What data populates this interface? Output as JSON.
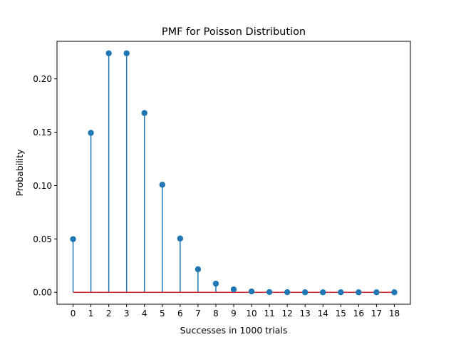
{
  "chart_data": {
    "type": "stem",
    "title": "PMF for Poisson Distribution",
    "xlabel": "Successes in 1000 trials",
    "ylabel": "Probability",
    "x": [
      0,
      1,
      2,
      3,
      4,
      5,
      6,
      7,
      8,
      9,
      10,
      11,
      12,
      13,
      14,
      15,
      16,
      17,
      18
    ],
    "y": [
      0.0498,
      0.1494,
      0.224,
      0.224,
      0.168,
      0.1008,
      0.0504,
      0.0216,
      0.0081,
      0.0027,
      0.0008,
      0.0002,
      0.0001,
      0.0,
      0.0,
      0.0,
      0.0,
      0.0,
      0.0
    ],
    "xticks": [
      "0",
      "1",
      "2",
      "3",
      "4",
      "5",
      "6",
      "7",
      "8",
      "9",
      "10",
      "11",
      "12",
      "13",
      "14",
      "15",
      "16",
      "17",
      "18"
    ],
    "yticks": [
      0.0,
      0.05,
      0.1,
      0.15,
      0.2
    ],
    "ytick_labels": [
      "0.00",
      "0.05",
      "0.10",
      "0.15",
      "0.20"
    ],
    "xlim": [
      -0.9,
      18.9
    ],
    "ylim": [
      -0.0112,
      0.2352
    ],
    "grid": false,
    "colors": {
      "stem": "#1f77b4",
      "marker": "#1f77b4",
      "baseline": "#d62728"
    }
  }
}
